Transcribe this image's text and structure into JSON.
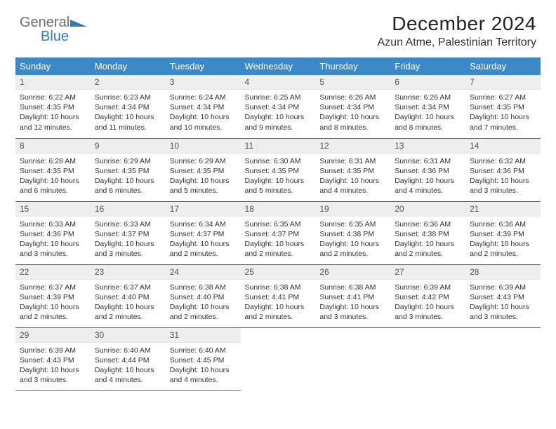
{
  "brand": {
    "word1": "General",
    "word2": "Blue",
    "logo_colors": {
      "word1": "#6d6d6d",
      "word2": "#2f7bbf",
      "tri": "#2f7bbf"
    }
  },
  "header": {
    "month_title": "December 2024",
    "location": "Azun Atme, Palestinian Territory"
  },
  "colors": {
    "header_bg": "#3b89c7",
    "header_text": "#ffffff",
    "daynum_bg": "#eeeeee",
    "row_border": "#3b6fa0"
  },
  "day_headers": [
    "Sunday",
    "Monday",
    "Tuesday",
    "Wednesday",
    "Thursday",
    "Friday",
    "Saturday"
  ],
  "weeks": [
    [
      {
        "n": "1",
        "sr": "6:22 AM",
        "ss": "4:35 PM",
        "dl": "10 hours and 12 minutes."
      },
      {
        "n": "2",
        "sr": "6:23 AM",
        "ss": "4:34 PM",
        "dl": "10 hours and 11 minutes."
      },
      {
        "n": "3",
        "sr": "6:24 AM",
        "ss": "4:34 PM",
        "dl": "10 hours and 10 minutes."
      },
      {
        "n": "4",
        "sr": "6:25 AM",
        "ss": "4:34 PM",
        "dl": "10 hours and 9 minutes."
      },
      {
        "n": "5",
        "sr": "6:26 AM",
        "ss": "4:34 PM",
        "dl": "10 hours and 8 minutes."
      },
      {
        "n": "6",
        "sr": "6:26 AM",
        "ss": "4:34 PM",
        "dl": "10 hours and 8 minutes."
      },
      {
        "n": "7",
        "sr": "6:27 AM",
        "ss": "4:35 PM",
        "dl": "10 hours and 7 minutes."
      }
    ],
    [
      {
        "n": "8",
        "sr": "6:28 AM",
        "ss": "4:35 PM",
        "dl": "10 hours and 6 minutes."
      },
      {
        "n": "9",
        "sr": "6:29 AM",
        "ss": "4:35 PM",
        "dl": "10 hours and 6 minutes."
      },
      {
        "n": "10",
        "sr": "6:29 AM",
        "ss": "4:35 PM",
        "dl": "10 hours and 5 minutes."
      },
      {
        "n": "11",
        "sr": "6:30 AM",
        "ss": "4:35 PM",
        "dl": "10 hours and 5 minutes."
      },
      {
        "n": "12",
        "sr": "6:31 AM",
        "ss": "4:35 PM",
        "dl": "10 hours and 4 minutes."
      },
      {
        "n": "13",
        "sr": "6:31 AM",
        "ss": "4:36 PM",
        "dl": "10 hours and 4 minutes."
      },
      {
        "n": "14",
        "sr": "6:32 AM",
        "ss": "4:36 PM",
        "dl": "10 hours and 3 minutes."
      }
    ],
    [
      {
        "n": "15",
        "sr": "6:33 AM",
        "ss": "4:36 PM",
        "dl": "10 hours and 3 minutes."
      },
      {
        "n": "16",
        "sr": "6:33 AM",
        "ss": "4:37 PM",
        "dl": "10 hours and 3 minutes."
      },
      {
        "n": "17",
        "sr": "6:34 AM",
        "ss": "4:37 PM",
        "dl": "10 hours and 2 minutes."
      },
      {
        "n": "18",
        "sr": "6:35 AM",
        "ss": "4:37 PM",
        "dl": "10 hours and 2 minutes."
      },
      {
        "n": "19",
        "sr": "6:35 AM",
        "ss": "4:38 PM",
        "dl": "10 hours and 2 minutes."
      },
      {
        "n": "20",
        "sr": "6:36 AM",
        "ss": "4:38 PM",
        "dl": "10 hours and 2 minutes."
      },
      {
        "n": "21",
        "sr": "6:36 AM",
        "ss": "4:39 PM",
        "dl": "10 hours and 2 minutes."
      }
    ],
    [
      {
        "n": "22",
        "sr": "6:37 AM",
        "ss": "4:39 PM",
        "dl": "10 hours and 2 minutes."
      },
      {
        "n": "23",
        "sr": "6:37 AM",
        "ss": "4:40 PM",
        "dl": "10 hours and 2 minutes."
      },
      {
        "n": "24",
        "sr": "6:38 AM",
        "ss": "4:40 PM",
        "dl": "10 hours and 2 minutes."
      },
      {
        "n": "25",
        "sr": "6:38 AM",
        "ss": "4:41 PM",
        "dl": "10 hours and 2 minutes."
      },
      {
        "n": "26",
        "sr": "6:38 AM",
        "ss": "4:41 PM",
        "dl": "10 hours and 3 minutes."
      },
      {
        "n": "27",
        "sr": "6:39 AM",
        "ss": "4:42 PM",
        "dl": "10 hours and 3 minutes."
      },
      {
        "n": "28",
        "sr": "6:39 AM",
        "ss": "4:43 PM",
        "dl": "10 hours and 3 minutes."
      }
    ],
    [
      {
        "n": "29",
        "sr": "6:39 AM",
        "ss": "4:43 PM",
        "dl": "10 hours and 3 minutes."
      },
      {
        "n": "30",
        "sr": "6:40 AM",
        "ss": "4:44 PM",
        "dl": "10 hours and 4 minutes."
      },
      {
        "n": "31",
        "sr": "6:40 AM",
        "ss": "4:45 PM",
        "dl": "10 hours and 4 minutes."
      },
      null,
      null,
      null,
      null
    ]
  ]
}
